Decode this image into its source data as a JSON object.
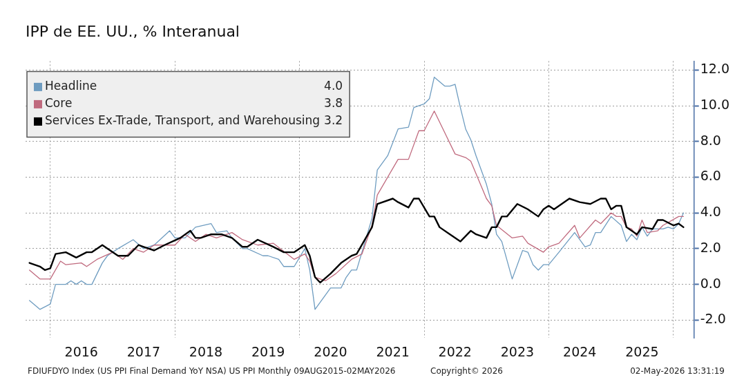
{
  "chart_data": {
    "type": "line",
    "title": "IPP de EE. UU., % Interanual",
    "xlim": [
      "2015-08-09",
      "2026-05-02"
    ],
    "xticks": [
      {
        "value": "2016-01-01",
        "label": null
      },
      {
        "value": "2016-07-01",
        "label": "2016"
      },
      {
        "value": "2017-07-01",
        "label": "2017"
      },
      {
        "value": "2018-01-01",
        "label": null
      },
      {
        "value": "2018-07-01",
        "label": "2018"
      },
      {
        "value": "2019-07-01",
        "label": "2019"
      },
      {
        "value": "2020-01-01",
        "label": null
      },
      {
        "value": "2020-07-01",
        "label": "2020"
      },
      {
        "value": "2021-07-01",
        "label": "2021"
      },
      {
        "value": "2022-01-01",
        "label": null
      },
      {
        "value": "2022-07-01",
        "label": "2022"
      },
      {
        "value": "2023-07-01",
        "label": "2023"
      },
      {
        "value": "2024-01-01",
        "label": null
      },
      {
        "value": "2024-07-01",
        "label": "2024"
      },
      {
        "value": "2025-07-01",
        "label": "2025"
      },
      {
        "value": "2026-01-01",
        "label": null
      }
    ],
    "ylim": [
      -3,
      12.5
    ],
    "yticks": [
      {
        "value": -2,
        "label": "-2.0"
      },
      {
        "value": 0,
        "label": "0.0"
      },
      {
        "value": 2,
        "label": "2.0"
      },
      {
        "value": 4,
        "label": "4.0"
      },
      {
        "value": 6,
        "label": "6.0"
      },
      {
        "value": 8,
        "label": "8.0"
      },
      {
        "value": 10,
        "label": "10.0"
      },
      {
        "value": 12,
        "label": "12.0"
      }
    ],
    "grid": true,
    "legend": "top left",
    "marker": "none",
    "line_style": "solid",
    "series": [
      {
        "name": "Headline",
        "color": "#6e9cc0",
        "x": [
          "2015-09",
          "2015-11",
          "2016-01",
          "2016-02",
          "2016-03",
          "2016-04",
          "2016-05",
          "2016-06",
          "2016-07",
          "2016-08",
          "2016-09",
          "2016-11",
          "2016-12",
          "2017-02",
          "2017-05",
          "2017-07",
          "2017-09",
          "2017-12",
          "2018-01",
          "2018-03",
          "2018-05",
          "2018-08",
          "2018-09",
          "2018-11",
          "2018-12",
          "2019-02",
          "2019-03",
          "2019-06",
          "2019-07",
          "2019-09",
          "2019-10",
          "2019-11",
          "2019-12",
          "2020-02",
          "2020-03",
          "2020-04",
          "2020-07",
          "2020-09",
          "2020-10",
          "2020-11",
          "2020-12",
          "2021-01",
          "2021-03",
          "2021-04",
          "2021-06",
          "2021-08",
          "2021-10",
          "2021-11",
          "2022-01",
          "2022-02",
          "2022-03",
          "2022-05",
          "2022-06",
          "2022-07",
          "2022-08",
          "2022-09",
          "2022-10",
          "2022-11",
          "2023-01",
          "2023-02",
          "2023-03",
          "2023-04",
          "2023-06",
          "2023-08",
          "2023-09",
          "2023-10",
          "2023-11",
          "2023-12",
          "2024-01",
          "2024-03",
          "2024-06",
          "2024-08",
          "2024-09",
          "2024-10",
          "2024-11",
          "2025-01",
          "2025-03",
          "2025-04",
          "2025-05",
          "2025-06",
          "2025-07",
          "2025-08",
          "2025-09",
          "2025-11",
          "2025-12",
          "2026-01",
          "2026-02",
          "2026-03"
        ],
        "values": [
          -0.9,
          -1.4,
          -1.1,
          0.0,
          0.0,
          0.0,
          0.2,
          0.0,
          0.2,
          0.0,
          0.0,
          1.2,
          1.6,
          2.0,
          2.5,
          2.0,
          2.2,
          3.0,
          2.6,
          2.6,
          3.2,
          3.4,
          2.9,
          3.0,
          2.6,
          2.0,
          2.0,
          1.6,
          1.6,
          1.4,
          1.0,
          1.0,
          1.0,
          2.0,
          0.8,
          -1.4,
          -0.2,
          -0.2,
          0.4,
          0.8,
          0.8,
          1.8,
          3.7,
          6.4,
          7.2,
          8.7,
          8.8,
          9.9,
          10.1,
          10.4,
          11.6,
          11.1,
          11.1,
          11.2,
          9.9,
          8.7,
          8.1,
          7.2,
          5.6,
          4.5,
          2.8,
          2.4,
          0.3,
          1.9,
          1.8,
          1.1,
          0.8,
          1.1,
          1.1,
          1.8,
          2.9,
          2.1,
          2.2,
          2.9,
          2.9,
          3.8,
          3.3,
          2.4,
          2.8,
          2.5,
          3.2,
          2.7,
          3.1,
          3.1,
          3.2,
          3.1,
          3.4,
          4.0
        ]
      },
      {
        "name": "Core",
        "color": "#c06a7e",
        "x": [
          "2015-09",
          "2015-11",
          "2016-01",
          "2016-03",
          "2016-04",
          "2016-07",
          "2016-08",
          "2016-10",
          "2017-01",
          "2017-03",
          "2017-05",
          "2017-07",
          "2017-09",
          "2018-01",
          "2018-03",
          "2018-05",
          "2018-07",
          "2018-09",
          "2018-12",
          "2019-02",
          "2019-05",
          "2019-08",
          "2019-12",
          "2020-02",
          "2020-03",
          "2020-04",
          "2020-06",
          "2020-08",
          "2020-11",
          "2021-01",
          "2021-03",
          "2021-04",
          "2021-08",
          "2021-10",
          "2021-12",
          "2022-01",
          "2022-03",
          "2022-05",
          "2022-07",
          "2022-09",
          "2022-10",
          "2023-01",
          "2023-02",
          "2023-03",
          "2023-06",
          "2023-08",
          "2023-09",
          "2023-12",
          "2024-01",
          "2024-03",
          "2024-06",
          "2024-07",
          "2024-10",
          "2024-11",
          "2025-01",
          "2025-02",
          "2025-03",
          "2025-04",
          "2025-05",
          "2025-06",
          "2025-07",
          "2025-08",
          "2025-10",
          "2025-11",
          "2026-02",
          "2026-03"
        ],
        "values": [
          0.8,
          0.3,
          0.3,
          1.3,
          1.1,
          1.2,
          1.0,
          1.4,
          1.8,
          1.4,
          2.0,
          1.8,
          2.2,
          2.2,
          2.8,
          2.4,
          2.8,
          2.6,
          2.9,
          2.5,
          2.2,
          2.3,
          1.4,
          1.7,
          1.3,
          0.4,
          0.2,
          0.6,
          1.4,
          1.7,
          3.3,
          5.0,
          7.0,
          7.0,
          8.6,
          8.6,
          9.7,
          8.5,
          7.3,
          7.1,
          6.9,
          4.8,
          4.4,
          3.3,
          2.6,
          2.7,
          2.3,
          1.8,
          2.1,
          2.3,
          3.3,
          2.6,
          3.6,
          3.4,
          4.0,
          3.8,
          3.8,
          3.2,
          3.1,
          2.7,
          3.6,
          2.9,
          3.0,
          3.3,
          3.8,
          3.8
        ]
      },
      {
        "name": "Services Ex-Trade, Transport, and Warehousing",
        "color": "#000000",
        "x": [
          "2015-09",
          "2015-11",
          "2015-12",
          "2016-01",
          "2016-02",
          "2016-04",
          "2016-06",
          "2016-08",
          "2016-09",
          "2016-11",
          "2017-02",
          "2017-04",
          "2017-06",
          "2017-07",
          "2017-09",
          "2017-11",
          "2018-02",
          "2018-04",
          "2018-05",
          "2018-06",
          "2018-08",
          "2018-10",
          "2018-12",
          "2019-02",
          "2019-03",
          "2019-05",
          "2019-08",
          "2019-10",
          "2019-12",
          "2020-02",
          "2020-03",
          "2020-04",
          "2020-05",
          "2020-07",
          "2020-09",
          "2020-11",
          "2020-12",
          "2021-03",
          "2021-04",
          "2021-07",
          "2021-08",
          "2021-10",
          "2021-11",
          "2021-12",
          "2022-02",
          "2022-03",
          "2022-04",
          "2022-06",
          "2022-08",
          "2022-10",
          "2022-11",
          "2023-01",
          "2023-02",
          "2023-03",
          "2023-04",
          "2023-05",
          "2023-07",
          "2023-09",
          "2023-11",
          "2023-12",
          "2024-01",
          "2024-02",
          "2024-05",
          "2024-07",
          "2024-09",
          "2024-11",
          "2024-12",
          "2025-01",
          "2025-02",
          "2025-03",
          "2025-04",
          "2025-06",
          "2025-07",
          "2025-09",
          "2025-10",
          "2025-11",
          "2026-01",
          "2026-02",
          "2026-03"
        ],
        "values": [
          1.2,
          1.0,
          0.8,
          0.9,
          1.7,
          1.8,
          1.5,
          1.8,
          1.8,
          2.2,
          1.6,
          1.6,
          2.2,
          2.1,
          1.9,
          2.2,
          2.6,
          3.0,
          2.6,
          2.6,
          2.8,
          2.8,
          2.6,
          2.1,
          2.1,
          2.5,
          2.1,
          1.8,
          1.8,
          2.2,
          1.6,
          0.4,
          0.1,
          0.6,
          1.2,
          1.6,
          1.7,
          3.2,
          4.5,
          4.8,
          4.6,
          4.3,
          4.8,
          4.8,
          3.8,
          3.8,
          3.2,
          2.8,
          2.4,
          3.0,
          2.8,
          2.6,
          3.2,
          3.2,
          3.8,
          3.8,
          4.5,
          4.2,
          3.8,
          4.2,
          4.4,
          4.2,
          4.8,
          4.6,
          4.5,
          4.8,
          4.8,
          4.2,
          4.4,
          4.4,
          3.2,
          2.8,
          3.2,
          3.1,
          3.6,
          3.6,
          3.3,
          3.4,
          3.2
        ]
      }
    ],
    "annotations": [
      "FDIUFDYO Index (US PPI Final Demand YoY NSA) US PPI Monthly 09AUG2015-02MAY2026",
      "Copyright© 2026",
      "02-May-2026 13:31:19",
      "4.0",
      "3.8",
      "3.2"
    ]
  }
}
